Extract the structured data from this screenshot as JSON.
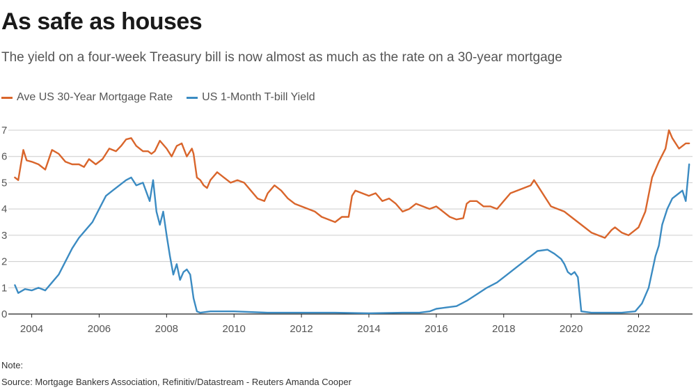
{
  "header": {
    "title": "As safe as houses",
    "subtitle": "The yield on a four-week Treasury bill is now almost as much as the rate on a 30-year mortgage"
  },
  "footer": {
    "note": "Note:",
    "source": "Source: Mortgage Bankers Association, Refinitiv/Datastream - Reuters Amanda Cooper"
  },
  "colors": {
    "mortgage": "#d9652b",
    "tbill": "#3b8bc2",
    "grid": "#cccccc",
    "axis": "#222222"
  },
  "chart_data": {
    "type": "line",
    "title": "As safe as houses",
    "xlabel": "",
    "ylabel": "",
    "xlim": [
      2003.1,
      2023.6
    ],
    "ylim": [
      0,
      7
    ],
    "yticks": [
      0,
      1,
      2,
      3,
      4,
      5,
      6,
      7
    ],
    "xticks": [
      2004,
      2006,
      2008,
      2010,
      2012,
      2014,
      2016,
      2018,
      2020,
      2022
    ],
    "grid": true,
    "legend": "top-left",
    "series": [
      {
        "name": "Ave US 30-Year Mortgage Rate",
        "color": "#d9652b",
        "x": [
          2003.5,
          2003.6,
          2003.75,
          2003.85,
          2004.0,
          2004.2,
          2004.4,
          2004.6,
          2004.8,
          2005.0,
          2005.2,
          2005.4,
          2005.55,
          2005.7,
          2005.9,
          2006.1,
          2006.3,
          2006.5,
          2006.65,
          2006.8,
          2006.95,
          2007.1,
          2007.3,
          2007.45,
          2007.55,
          2007.65,
          2007.8,
          2008.0,
          2008.15,
          2008.3,
          2008.45,
          2008.6,
          2008.75,
          2008.8,
          2008.9,
          2009.0,
          2009.1,
          2009.2,
          2009.3,
          2009.5,
          2009.7,
          2009.9,
          2010.1,
          2010.3,
          2010.5,
          2010.7,
          2010.9,
          2011.0,
          2011.2,
          2011.4,
          2011.6,
          2011.8,
          2012.0,
          2012.2,
          2012.4,
          2012.6,
          2012.8,
          2013.0,
          2013.2,
          2013.4,
          2013.5,
          2013.6,
          2013.8,
          2014.0,
          2014.2,
          2014.4,
          2014.6,
          2014.8,
          2015.0,
          2015.2,
          2015.4,
          2015.6,
          2015.8,
          2016.0,
          2016.2,
          2016.4,
          2016.6,
          2016.8,
          2016.9,
          2017.0,
          2017.2,
          2017.4,
          2017.6,
          2017.8,
          2018.0,
          2018.2,
          2018.4,
          2018.6,
          2018.8,
          2018.9,
          2019.0,
          2019.2,
          2019.4,
          2019.6,
          2019.8,
          2020.0,
          2020.2,
          2020.4,
          2020.6,
          2020.8,
          2021.0,
          2021.2,
          2021.3,
          2021.5,
          2021.7,
          2021.9,
          2022.0,
          2022.2,
          2022.4,
          2022.6,
          2022.8,
          2022.9,
          2023.0,
          2023.2,
          2023.4,
          2023.5
        ],
        "values": [
          5.2,
          5.1,
          6.25,
          5.85,
          5.8,
          5.7,
          5.5,
          6.25,
          6.1,
          5.8,
          5.7,
          5.7,
          5.6,
          5.9,
          5.7,
          5.9,
          6.3,
          6.2,
          6.4,
          6.65,
          6.7,
          6.4,
          6.2,
          6.2,
          6.1,
          6.2,
          6.6,
          6.3,
          6.0,
          6.4,
          6.5,
          6.0,
          6.3,
          6.1,
          5.2,
          5.1,
          4.9,
          4.8,
          5.1,
          5.4,
          5.2,
          5.0,
          5.1,
          5.0,
          4.7,
          4.4,
          4.3,
          4.6,
          4.9,
          4.7,
          4.4,
          4.2,
          4.1,
          4.0,
          3.9,
          3.7,
          3.6,
          3.5,
          3.7,
          3.7,
          4.5,
          4.7,
          4.6,
          4.5,
          4.6,
          4.3,
          4.4,
          4.2,
          3.9,
          4.0,
          4.2,
          4.1,
          4.0,
          4.1,
          3.9,
          3.7,
          3.6,
          3.65,
          4.2,
          4.3,
          4.3,
          4.1,
          4.1,
          4.0,
          4.3,
          4.6,
          4.7,
          4.8,
          4.9,
          5.1,
          4.9,
          4.5,
          4.1,
          4.0,
          3.9,
          3.7,
          3.5,
          3.3,
          3.1,
          3.0,
          2.9,
          3.2,
          3.3,
          3.1,
          3.0,
          3.2,
          3.3,
          3.9,
          5.2,
          5.8,
          6.3,
          7.0,
          6.7,
          6.3,
          6.5,
          6.5
        ]
      },
      {
        "name": "US 1-Month T-bill Yield",
        "color": "#3b8bc2",
        "x": [
          2003.5,
          2003.6,
          2003.8,
          2004.0,
          2004.2,
          2004.4,
          2004.6,
          2004.8,
          2005.0,
          2005.2,
          2005.4,
          2005.6,
          2005.8,
          2006.0,
          2006.2,
          2006.4,
          2006.6,
          2006.8,
          2006.95,
          2007.1,
          2007.3,
          2007.5,
          2007.6,
          2007.7,
          2007.8,
          2007.9,
          2008.0,
          2008.1,
          2008.2,
          2008.3,
          2008.4,
          2008.5,
          2008.6,
          2008.7,
          2008.8,
          2008.9,
          2009.0,
          2009.3,
          2010.0,
          2011.0,
          2012.0,
          2013.0,
          2014.0,
          2015.0,
          2015.5,
          2015.8,
          2016.0,
          2016.3,
          2016.6,
          2016.9,
          2017.2,
          2017.5,
          2017.8,
          2018.1,
          2018.4,
          2018.7,
          2019.0,
          2019.3,
          2019.5,
          2019.7,
          2019.8,
          2019.9,
          2020.0,
          2020.1,
          2020.2,
          2020.3,
          2020.6,
          2021.0,
          2021.5,
          2021.9,
          2022.1,
          2022.3,
          2022.5,
          2022.6,
          2022.7,
          2022.85,
          2023.0,
          2023.2,
          2023.3,
          2023.4,
          2023.5
        ],
        "values": [
          1.1,
          0.8,
          0.95,
          0.9,
          1.0,
          0.9,
          1.2,
          1.5,
          2.0,
          2.5,
          2.9,
          3.2,
          3.5,
          4.0,
          4.5,
          4.7,
          4.9,
          5.1,
          5.2,
          4.9,
          5.0,
          4.3,
          5.1,
          3.9,
          3.4,
          3.9,
          3.0,
          2.2,
          1.5,
          1.9,
          1.3,
          1.6,
          1.7,
          1.5,
          0.6,
          0.1,
          0.05,
          0.1,
          0.1,
          0.05,
          0.05,
          0.05,
          0.03,
          0.05,
          0.05,
          0.1,
          0.2,
          0.25,
          0.3,
          0.5,
          0.75,
          1.0,
          1.2,
          1.5,
          1.8,
          2.1,
          2.4,
          2.45,
          2.3,
          2.1,
          1.9,
          1.6,
          1.5,
          1.6,
          1.4,
          0.1,
          0.05,
          0.05,
          0.05,
          0.1,
          0.4,
          1.0,
          2.2,
          2.6,
          3.4,
          4.0,
          4.4,
          4.6,
          4.7,
          4.3,
          5.7
        ]
      }
    ]
  }
}
